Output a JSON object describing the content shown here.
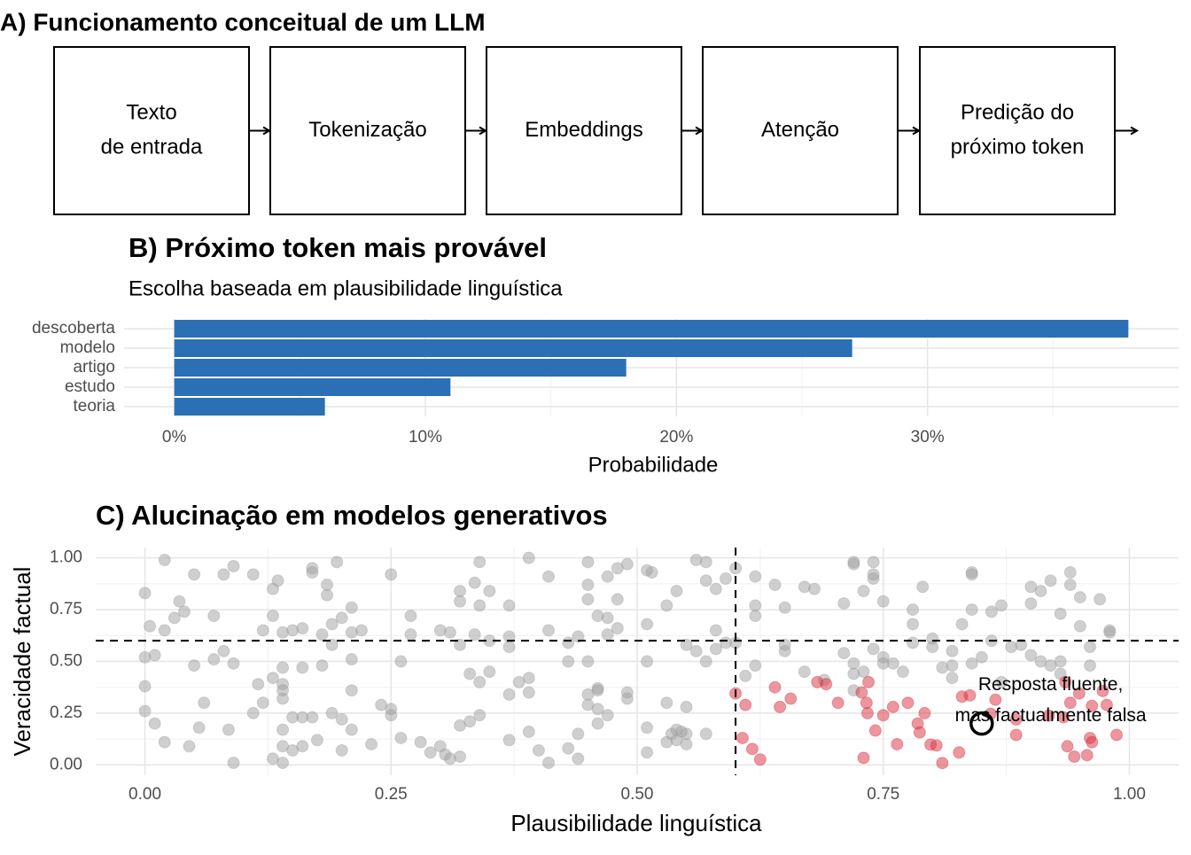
{
  "diagram": {
    "title": "A) Funcionamento conceitual de um LLM",
    "nodes": [
      {
        "lines": [
          "Texto",
          "de entrada"
        ]
      },
      {
        "lines": [
          "Tokenização"
        ]
      },
      {
        "lines": [
          "Embeddings"
        ]
      },
      {
        "lines": [
          "Atenção"
        ]
      },
      {
        "lines": [
          "Predição do",
          "próximo token"
        ]
      }
    ]
  },
  "chart_data": [
    {
      "type": "bar",
      "orientation": "horizontal",
      "title": "B) Próximo token mais provável",
      "subtitle": "Escolha baseada em plausibilidade linguística",
      "x_label": "Probabilidade",
      "categories": [
        "descoberta",
        "modelo",
        "artigo",
        "estudo",
        "teoria"
      ],
      "values": [
        38,
        27,
        18,
        11,
        6
      ],
      "color": "#2b70b4",
      "xlim": [
        -2,
        40
      ],
      "xticks": [
        {
          "value": 0,
          "label": "0%"
        },
        {
          "value": 10,
          "label": "10%"
        },
        {
          "value": 20,
          "label": "20%"
        },
        {
          "value": 30,
          "label": "30%"
        }
      ],
      "xminor": [
        5,
        15,
        25,
        35
      ],
      "grid": true
    },
    {
      "type": "scatter",
      "title": "C) Alucinação em modelos generativos",
      "x_label": "Plausibilidade linguística",
      "y_label": "Veracidade factual",
      "xlim": [
        -0.05,
        1.05
      ],
      "ylim": [
        -0.05,
        1.05
      ],
      "xticks": [
        {
          "value": 0,
          "label": "0.00"
        },
        {
          "value": 0.25,
          "label": "0.25"
        },
        {
          "value": 0.5,
          "label": "0.50"
        },
        {
          "value": 0.75,
          "label": "0.75"
        },
        {
          "value": 1,
          "label": "1.00"
        }
      ],
      "yticks": [
        {
          "value": 0,
          "label": "0.00"
        },
        {
          "value": 0.25,
          "label": "0.25"
        },
        {
          "value": 0.5,
          "label": "0.50"
        },
        {
          "value": 0.75,
          "label": "0.75"
        },
        {
          "value": 1,
          "label": "1.00"
        }
      ],
      "xminor": [
        0.125,
        0.375,
        0.625,
        0.875
      ],
      "yminor": [
        0.125,
        0.375,
        0.625,
        0.875
      ],
      "grid": true,
      "thresholds": {
        "x": 0.6,
        "y": 0.6
      },
      "highlight": {
        "x": 0.85,
        "y": 0.2
      },
      "annotation": {
        "lines": [
          "Resposta fluente,",
          "mas factualmente falsa"
        ],
        "x": 0.92,
        "y": 0.31
      },
      "series": [
        {
          "color": "#a0a0a0",
          "x": [
            0.0,
            0.02,
            0.05,
            0.08,
            0.09,
            0.11,
            0.13,
            0.135,
            0.17,
            0.17,
            0.185,
            0.195,
            0.185,
            0.0,
            0.005,
            0.01,
            0.02,
            0.03,
            0.035,
            0.04,
            0.05,
            0.07,
            0.07,
            0.08,
            0.09,
            0.06,
            0.0,
            0.0,
            0.01,
            0.02,
            0.045,
            0.055,
            0.085,
            0.09,
            0.12,
            0.13,
            0.14,
            0.15,
            0.16,
            0.14,
            0.13,
            0.115,
            0.11,
            0.12,
            0.14,
            0.14,
            0.14,
            0.15,
            0.16,
            0.17,
            0.14,
            0.14,
            0.13,
            0.14,
            0.15,
            0.16,
            0.175,
            0.18,
            0.16,
            0.18,
            0.19,
            0.19,
            0.2,
            0.21,
            0.21,
            0.22,
            0.21,
            0.21,
            0.19,
            0.2,
            0.21,
            0.2,
            0.23,
            0.24,
            0.25,
            0.26,
            0.25,
            0.26,
            0.25,
            0.27,
            0.27,
            0.29,
            0.3,
            0.305,
            0.31,
            0.32,
            0.28,
            0.3,
            0.31,
            0.32,
            0.32,
            0.34,
            0.335,
            0.34,
            0.37,
            0.35,
            0.32,
            0.335,
            0.37,
            0.37,
            0.35,
            0.33,
            0.34,
            0.35,
            0.34,
            0.32,
            0.33,
            0.37,
            0.38,
            0.39,
            0.39,
            0.37,
            0.39,
            0.4,
            0.41,
            0.39,
            0.41,
            0.43,
            0.41,
            0.44,
            0.43,
            0.45,
            0.45,
            0.45,
            0.46,
            0.45,
            0.48,
            0.47,
            0.47,
            0.48,
            0.48,
            0.49,
            0.47,
            0.45,
            0.46,
            0.46,
            0.46,
            0.45,
            0.47,
            0.44,
            0.46,
            0.43,
            0.44,
            0.49,
            0.49,
            0.51,
            0.51,
            0.51,
            0.515,
            0.53,
            0.54,
            0.56,
            0.57,
            0.57,
            0.58,
            0.59,
            0.55,
            0.56,
            0.57,
            0.58,
            0.59,
            0.58,
            0.54,
            0.535,
            0.54,
            0.55,
            0.545,
            0.55,
            0.53,
            0.51,
            0.51,
            0.53,
            0.55,
            0.57,
            0.6,
            0.62,
            0.62,
            0.62,
            0.64,
            0.65,
            0.67,
            0.68,
            0.6,
            0.62,
            0.61,
            0.65,
            0.65,
            0.67,
            0.69,
            0.71,
            0.72,
            0.72,
            0.73,
            0.74,
            0.74,
            0.74,
            0.75,
            0.71,
            0.72,
            0.73,
            0.72,
            0.72,
            0.74,
            0.75,
            0.75,
            0.76,
            0.77,
            0.78,
            0.79,
            0.78,
            0.78,
            0.8,
            0.8,
            0.81,
            0.82,
            0.82,
            0.83,
            0.84,
            0.84,
            0.84,
            0.86,
            0.86,
            0.87,
            0.87,
            0.88,
            0.89,
            0.9,
            0.9,
            0.9,
            0.91,
            0.91,
            0.92,
            0.92,
            0.93,
            0.93,
            0.93,
            0.94,
            0.94,
            0.95,
            0.96,
            0.96,
            0.97,
            0.98,
            0.98,
            0.84,
            0.85,
            0.82,
            0.95
          ],
          "y": [
            0.83,
            0.99,
            0.92,
            0.92,
            0.96,
            0.92,
            0.85,
            0.89,
            0.95,
            0.93,
            0.87,
            0.98,
            0.82,
            0.52,
            0.67,
            0.53,
            0.65,
            0.71,
            0.79,
            0.74,
            0.48,
            0.72,
            0.51,
            0.55,
            0.49,
            0.3,
            0.38,
            0.26,
            0.2,
            0.11,
            0.09,
            0.18,
            0.17,
            0.01,
            0.65,
            0.72,
            0.64,
            0.65,
            0.66,
            0.47,
            0.42,
            0.39,
            0.25,
            0.3,
            0.36,
            0.39,
            0.32,
            0.23,
            0.23,
            0.23,
            0.17,
            0.09,
            0.03,
            0.01,
            0.07,
            0.09,
            0.12,
            0.48,
            0.47,
            0.63,
            0.58,
            0.68,
            0.71,
            0.64,
            0.76,
            0.65,
            0.51,
            0.36,
            0.25,
            0.22,
            0.17,
            0.07,
            0.1,
            0.29,
            0.27,
            0.5,
            0.24,
            0.13,
            0.92,
            0.72,
            0.63,
            0.06,
            0.09,
            0.05,
            0.03,
            0.04,
            0.11,
            0.65,
            0.64,
            0.79,
            0.84,
            0.98,
            0.88,
            0.77,
            0.77,
            0.84,
            0.58,
            0.63,
            0.62,
            0.57,
            0.6,
            0.44,
            0.4,
            0.45,
            0.24,
            0.19,
            0.21,
            0.34,
            0.4,
            0.35,
            0.42,
            0.12,
            0.16,
            0.07,
            0.01,
            1.0,
            0.91,
            0.59,
            0.65,
            0.62,
            0.5,
            0.5,
            0.8,
            0.87,
            0.72,
            0.98,
            0.66,
            0.63,
            0.71,
            0.8,
            0.95,
            0.97,
            0.91,
            0.29,
            0.36,
            0.27,
            0.37,
            0.34,
            0.24,
            0.15,
            0.2,
            0.08,
            0.03,
            0.35,
            0.32,
            0.5,
            0.68,
            0.94,
            0.93,
            0.77,
            0.84,
            0.99,
            0.98,
            0.89,
            0.85,
            0.9,
            0.58,
            0.55,
            0.5,
            0.65,
            0.59,
            0.56,
            0.17,
            0.15,
            0.12,
            0.1,
            0.16,
            0.15,
            0.11,
            0.18,
            0.06,
            0.3,
            0.28,
            0.15,
            0.95,
            0.91,
            0.72,
            0.77,
            0.87,
            0.76,
            0.86,
            0.85,
            0.59,
            0.48,
            0.43,
            0.58,
            0.55,
            0.45,
            0.41,
            0.78,
            0.98,
            0.97,
            0.84,
            0.98,
            0.92,
            0.9,
            0.79,
            0.54,
            0.49,
            0.45,
            0.44,
            0.36,
            0.56,
            0.49,
            0.52,
            0.49,
            0.45,
            0.75,
            0.86,
            0.68,
            0.59,
            0.61,
            0.57,
            0.47,
            0.48,
            0.42,
            0.68,
            0.92,
            0.75,
            0.93,
            0.6,
            0.74,
            0.77,
            0.4,
            0.57,
            0.58,
            0.53,
            0.78,
            0.86,
            0.84,
            0.5,
            0.89,
            0.48,
            0.44,
            0.5,
            0.73,
            0.93,
            0.87,
            0.81,
            0.57,
            0.48,
            0.8,
            0.65,
            0.64,
            0.49,
            0.52,
            0.55,
            0.67
          ]
        },
        {
          "color": "#d9303f",
          "x": [
            0.6,
            0.61,
            0.607,
            0.617,
            0.625,
            0.64,
            0.645,
            0.656,
            0.683,
            0.692,
            0.704,
            0.728,
            0.735,
            0.733,
            0.734,
            0.742,
            0.75,
            0.73,
            0.76,
            0.764,
            0.775,
            0.785,
            0.787,
            0.792,
            0.798,
            0.804,
            0.81,
            0.827,
            0.83,
            0.838,
            0.864,
            0.859,
            0.885,
            0.885,
            0.918,
            0.933,
            0.935,
            0.94,
            0.949,
            0.962,
            0.973,
            0.977,
            0.937,
            0.944,
            0.957,
            0.96,
            0.962,
            0.987
          ],
          "y": [
            0.345,
            0.29,
            0.13,
            0.077,
            0.026,
            0.375,
            0.28,
            0.32,
            0.4,
            0.39,
            0.3,
            0.35,
            0.4,
            0.3,
            0.25,
            0.166,
            0.24,
            0.034,
            0.28,
            0.1,
            0.3,
            0.2,
            0.157,
            0.25,
            0.098,
            0.094,
            0.009,
            0.06,
            0.33,
            0.336,
            0.315,
            0.247,
            0.145,
            0.22,
            0.238,
            0.23,
            0.4,
            0.3,
            0.345,
            0.285,
            0.357,
            0.29,
            0.09,
            0.04,
            0.047,
            0.13,
            0.11,
            0.145
          ]
        }
      ]
    }
  ]
}
